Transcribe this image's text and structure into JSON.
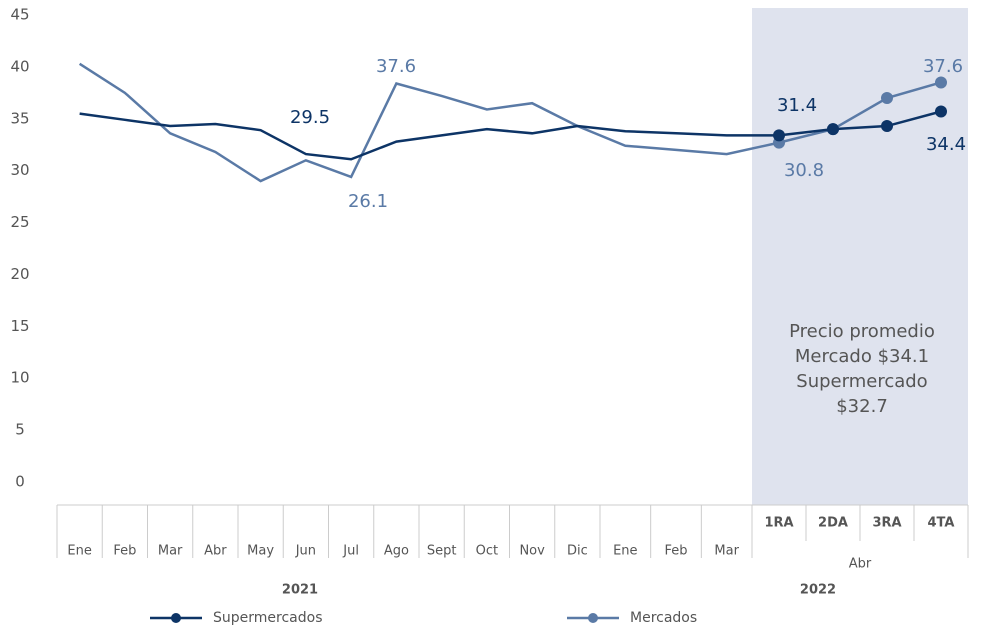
{
  "chart_data": {
    "type": "line",
    "categories": [
      "Ene",
      "Feb",
      "Mar",
      "Abr",
      "May",
      "Jun",
      "Jul",
      "Ago",
      "Sept",
      "Oct",
      "Nov",
      "Dic",
      "Ene",
      "Feb",
      "Mar",
      "1RA",
      "2DA",
      "3RA",
      "4TA"
    ],
    "year_groups": [
      {
        "label": "2021",
        "start": 0,
        "end": 11
      },
      {
        "label": "2022",
        "start": 12,
        "end": 18
      }
    ],
    "sub_groups": [
      {
        "label": "Abr",
        "start": 15,
        "end": 18
      }
    ],
    "series": [
      {
        "name": "Supermercados",
        "color": "#0d3466",
        "values": [
          35.5,
          34.9,
          34.3,
          34.5,
          33.9,
          31.6,
          31.1,
          32.8,
          33.4,
          34.0,
          33.6,
          34.3,
          33.8,
          33.6,
          33.4,
          33.4,
          34.0,
          34.3,
          35.7
        ]
      },
      {
        "name": "Mercados",
        "color": "#5a7aa6",
        "values": [
          40.3,
          37.5,
          33.6,
          31.8,
          29.0,
          31.0,
          29.4,
          38.4,
          37.2,
          35.9,
          36.5,
          34.3,
          32.4,
          32.0,
          31.6,
          32.7,
          34.0,
          37.0,
          38.5
        ]
      }
    ],
    "annotations": [
      {
        "text": "29.5",
        "series": 0
      },
      {
        "text": "37.6",
        "series": 1
      },
      {
        "text": "26.1",
        "series": 1
      },
      {
        "text": "31.4",
        "series": 0
      },
      {
        "text": "30.8",
        "series": 1
      },
      {
        "text": "37.6",
        "series": 1
      },
      {
        "text": "34.4",
        "series": 0
      }
    ],
    "highlight_note": [
      "Precio promedio",
      "Mercado $34.1",
      "Supermercado",
      "$32.7"
    ],
    "ylim": [
      0,
      45
    ],
    "yticks": [
      0,
      5,
      10,
      15,
      20,
      25,
      30,
      35,
      40,
      45
    ],
    "grid": false,
    "legend": "bottom"
  }
}
